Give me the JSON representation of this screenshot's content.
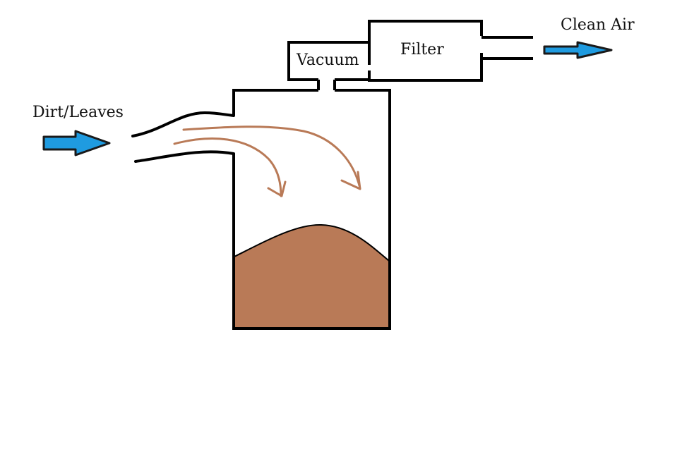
{
  "labels": {
    "inlet": "Dirt/Leaves",
    "vacuum": "Vacuum",
    "filter": "Filter",
    "outlet": "Clean Air"
  },
  "colors": {
    "outline": "#000000",
    "arrow_fill": "#1f9be0",
    "arrow_stroke": "#1a1a1a",
    "debris": "#b97a57",
    "airflow": "#b97a57",
    "background": "#ffffff"
  },
  "icons": {
    "inlet_arrow": "right-arrow-icon",
    "outlet_arrow": "right-arrow-icon"
  }
}
